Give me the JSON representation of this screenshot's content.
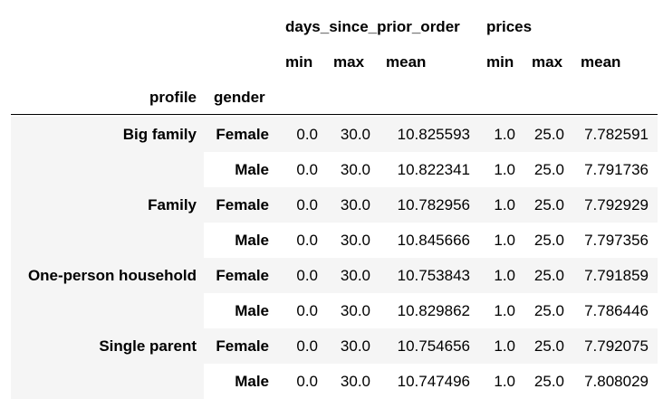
{
  "header": {
    "group1": "days_since_prior_order",
    "group2": "prices",
    "stats": [
      "min",
      "max",
      "mean",
      "min",
      "max",
      "mean"
    ],
    "index_names": [
      "profile",
      "gender"
    ]
  },
  "rows": [
    {
      "profile": "Big family",
      "gender": "Female",
      "values": [
        "0.0",
        "30.0",
        "10.825593",
        "1.0",
        "25.0",
        "7.782591"
      ]
    },
    {
      "profile": "",
      "gender": "Male",
      "values": [
        "0.0",
        "30.0",
        "10.822341",
        "1.0",
        "25.0",
        "7.791736"
      ]
    },
    {
      "profile": "Family",
      "gender": "Female",
      "values": [
        "0.0",
        "30.0",
        "10.782956",
        "1.0",
        "25.0",
        "7.792929"
      ]
    },
    {
      "profile": "",
      "gender": "Male",
      "values": [
        "0.0",
        "30.0",
        "10.845666",
        "1.0",
        "25.0",
        "7.797356"
      ]
    },
    {
      "profile": "One-person household",
      "gender": "Female",
      "values": [
        "0.0",
        "30.0",
        "10.753843",
        "1.0",
        "25.0",
        "7.791859"
      ]
    },
    {
      "profile": "",
      "gender": "Male",
      "values": [
        "0.0",
        "30.0",
        "10.829862",
        "1.0",
        "25.0",
        "7.786446"
      ]
    },
    {
      "profile": "Single parent",
      "gender": "Female",
      "values": [
        "0.0",
        "30.0",
        "10.754656",
        "1.0",
        "25.0",
        "7.792075"
      ]
    },
    {
      "profile": "",
      "gender": "Male",
      "values": [
        "0.0",
        "30.0",
        "10.747496",
        "1.0",
        "25.0",
        "7.808029"
      ]
    }
  ],
  "colors": {
    "stripe": "#f5f5f5",
    "text": "#000000",
    "rule": "#000000"
  }
}
